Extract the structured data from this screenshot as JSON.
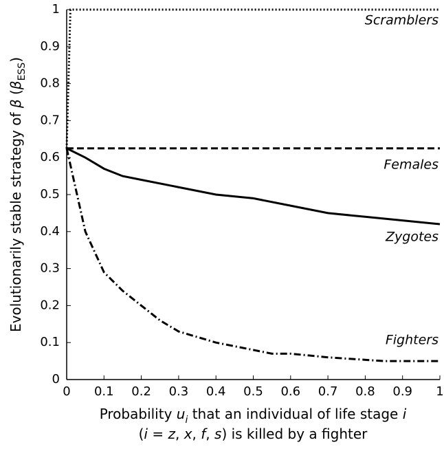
{
  "chart_data": {
    "type": "line",
    "x_label_lines": [
      [
        "Probability ",
        "u",
        "i",
        " that an individual of life stage ",
        "i"
      ],
      [
        "(",
        "i",
        " = ",
        "z",
        ", ",
        "x",
        ", ",
        "f",
        ", ",
        "s",
        ") is killed by a fighter"
      ]
    ],
    "y_label": [
      "Evolutionarily stable strategy of ",
      "β",
      " (",
      "β",
      "ESS",
      ")"
    ],
    "annotations": [
      "Scramblers",
      "Females",
      "Zygotes",
      "Fighters"
    ],
    "series": [
      {
        "style": "dotted",
        "color": "#000000",
        "x": [
          0,
          0.01,
          1
        ],
        "values": [
          0.625,
          1,
          1
        ]
      },
      {
        "style": "dashed",
        "color": "#000000",
        "x": [
          0,
          1
        ],
        "values": [
          0.625,
          0.625
        ]
      },
      {
        "style": "solid",
        "color": "#000000",
        "x": [
          0,
          0.05,
          0.1,
          0.15,
          0.2,
          0.3,
          0.4,
          0.5,
          0.6,
          0.7,
          0.8,
          0.9,
          1
        ],
        "values": [
          0.625,
          0.6,
          0.57,
          0.55,
          0.54,
          0.52,
          0.5,
          0.49,
          0.47,
          0.45,
          0.44,
          0.43,
          0.42
        ]
      },
      {
        "style": "dashdot",
        "color": "#000000",
        "x": [
          0,
          0.05,
          0.1,
          0.15,
          0.2,
          0.25,
          0.3,
          0.35,
          0.4,
          0.45,
          0.5,
          0.55,
          0.6,
          0.7,
          0.85,
          1
        ],
        "values": [
          0.625,
          0.4,
          0.29,
          0.24,
          0.2,
          0.16,
          0.13,
          0.115,
          0.1,
          0.09,
          0.08,
          0.07,
          0.07,
          0.06,
          0.05,
          0.05
        ]
      }
    ],
    "xlim": [
      0,
      1
    ],
    "ylim": [
      0,
      1
    ],
    "xticks": [
      0,
      0.1,
      0.2,
      0.3,
      0.4,
      0.5,
      0.6,
      0.7,
      0.8,
      0.9,
      1
    ],
    "yticks": [
      0,
      0.1,
      0.2,
      0.3,
      0.4,
      0.5,
      0.6,
      0.7,
      0.8,
      0.9,
      1
    ]
  }
}
